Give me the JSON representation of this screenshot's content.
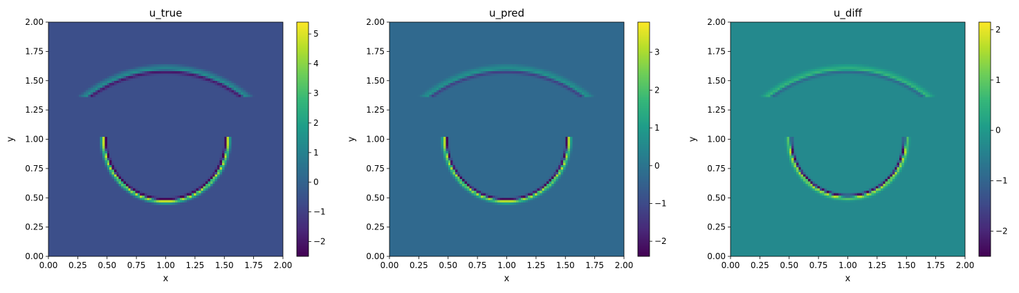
{
  "figure": {
    "colormap": "viridis"
  },
  "chart_data": [
    {
      "type": "heatmap",
      "title": "u_true",
      "xlabel": "x",
      "ylabel": "y",
      "xlim": [
        0,
        2
      ],
      "ylim": [
        0,
        2
      ],
      "xticks": [
        "0.00",
        "0.25",
        "0.50",
        "0.75",
        "1.00",
        "1.25",
        "1.50",
        "1.75",
        "2.00"
      ],
      "yticks": [
        "0.00",
        "0.25",
        "0.50",
        "0.75",
        "1.00",
        "1.25",
        "1.50",
        "1.75",
        "2.00"
      ],
      "colorbar": {
        "range": [
          -2.5,
          5.4
        ],
        "ticks": [
          -2,
          -1,
          0,
          1,
          2,
          3,
          4,
          5
        ]
      },
      "field": {
        "background": -0.6,
        "small_arc": {
          "center": [
            1.0,
            1.0
          ],
          "radius": 0.53,
          "lower_half_only": true,
          "ring": [
            -2.4,
            5.2,
            2.0
          ]
        },
        "large_arc": {
          "center": [
            1.0,
            0.5
          ],
          "radius": 1.1,
          "ring": [
            -1.5,
            2.0,
            1.0
          ]
        }
      }
    },
    {
      "type": "heatmap",
      "title": "u_pred",
      "xlabel": "x",
      "ylabel": "y",
      "xlim": [
        0,
        2
      ],
      "ylim": [
        0,
        2
      ],
      "xticks": [
        "0.00",
        "0.25",
        "0.50",
        "0.75",
        "1.00",
        "1.25",
        "1.50",
        "1.75",
        "2.00"
      ],
      "yticks": [
        "0.00",
        "0.25",
        "0.50",
        "0.75",
        "1.00",
        "1.25",
        "1.50",
        "1.75",
        "2.00"
      ],
      "colorbar": {
        "range": [
          -2.4,
          3.8
        ],
        "ticks": [
          -2,
          -1,
          0,
          1,
          2,
          3
        ]
      },
      "field": {
        "background": -0.3,
        "small_arc": {
          "center": [
            1.0,
            1.0
          ],
          "radius": 0.53,
          "lower_half_only": true,
          "ring": [
            -2.2,
            3.4,
            1.2
          ]
        },
        "large_arc": {
          "center": [
            1.0,
            0.5
          ],
          "radius": 1.1,
          "ring": [
            -1.0,
            1.1,
            0.6
          ]
        }
      }
    },
    {
      "type": "heatmap",
      "title": "u_diff",
      "xlabel": "x",
      "ylabel": "y",
      "xlim": [
        0,
        2
      ],
      "ylim": [
        0,
        2
      ],
      "xticks": [
        "0.00",
        "0.25",
        "0.50",
        "0.75",
        "1.00",
        "1.25",
        "1.50",
        "1.75",
        "2.00"
      ],
      "yticks": [
        "0.00",
        "0.25",
        "0.50",
        "0.75",
        "1.00",
        "1.25",
        "1.50",
        "1.75",
        "2.00"
      ],
      "colorbar": {
        "range": [
          -2.5,
          2.15
        ],
        "ticks": [
          -2,
          -1,
          0,
          1,
          2
        ]
      },
      "field": {
        "background": -0.3,
        "small_arc": {
          "center": [
            1.0,
            1.0
          ],
          "radius": 0.5,
          "lower_half_only": true,
          "ring": [
            -2.3,
            2.0,
            0.6
          ]
        },
        "large_arc": {
          "center": [
            1.0,
            0.5
          ],
          "radius": 1.1,
          "ring": [
            -0.7,
            0.9,
            0.4
          ]
        }
      }
    }
  ]
}
